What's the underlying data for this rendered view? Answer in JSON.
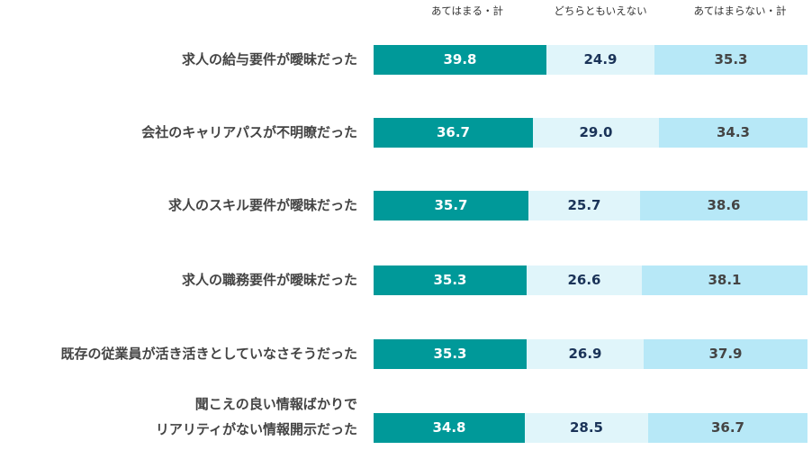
{
  "chart_data": {
    "type": "bar",
    "orientation": "horizontal",
    "stacked": true,
    "percent": true,
    "title": "",
    "xlabel": "",
    "ylabel": "",
    "xlim": [
      0,
      100
    ],
    "grid": false,
    "legend_position": "top",
    "categories": [
      [
        "求人の給与要件が曖昧だった"
      ],
      [
        "会社のキャリアパスが不明瞭だった"
      ],
      [
        "求人のスキル要件が曖昧だった"
      ],
      [
        "求人の職務要件が曖昧だった"
      ],
      [
        "既存の従業員が活き活きとしていなさそうだった"
      ],
      [
        "聞こえの良い情報ばかりで",
        "リアリティがない情報開示だった"
      ]
    ],
    "series": [
      {
        "name": "あてはまる・計",
        "color": "#009999",
        "label_color": "#ffffff",
        "values": [
          39.8,
          36.7,
          35.7,
          35.3,
          35.3,
          34.8
        ]
      },
      {
        "name": "どちらともいえない",
        "color": "#e0f5fa",
        "label_color": "#1a3358",
        "values": [
          24.9,
          29.0,
          25.7,
          26.6,
          26.9,
          28.5
        ]
      },
      {
        "name": "あてはまらない・計",
        "color": "#b7e8f7",
        "label_color": "#444444",
        "values": [
          35.3,
          34.3,
          38.6,
          38.1,
          37.9,
          36.7
        ]
      }
    ]
  }
}
